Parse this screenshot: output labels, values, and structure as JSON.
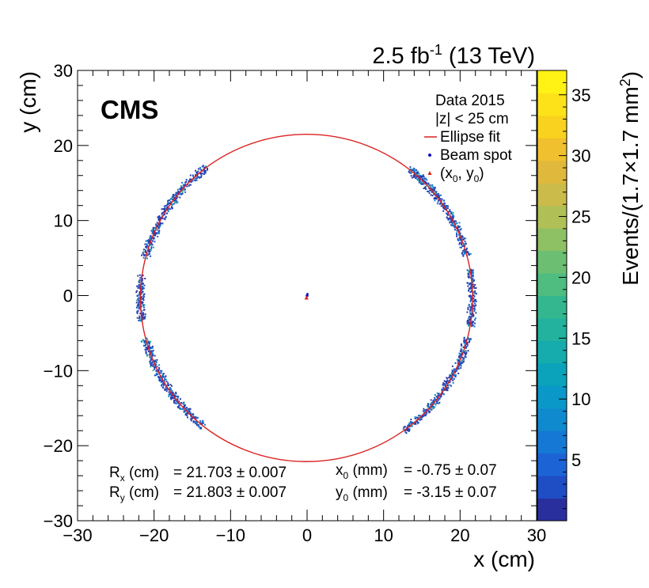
{
  "chart_data": {
    "type": "heatmap",
    "experiment": "CMS",
    "lumi_label": "2.5 fb",
    "lumi_exponent": "-1",
    "energy_label": "(13 TeV)",
    "xlabel": "x (cm)",
    "ylabel": "y (cm)",
    "xlim": [
      -30,
      30
    ],
    "ylim": [
      -30,
      30
    ],
    "xticks": [
      -30,
      -20,
      -10,
      0,
      10,
      20,
      30
    ],
    "yticks": [
      -30,
      -20,
      -10,
      0,
      10,
      20,
      30
    ],
    "xtick_labels": [
      "−30",
      "−20",
      "−10",
      "0",
      "10",
      "20",
      "30"
    ],
    "ytick_labels": [
      "−30",
      "−20",
      "−10",
      "0",
      "10",
      "20",
      "30"
    ],
    "legend": {
      "position": "top-right",
      "header": [
        "Data 2015",
        "|z| < 25 cm"
      ],
      "entries": [
        {
          "label": "Ellipse fit",
          "marker": "line",
          "color": "#dc2020"
        },
        {
          "label": "Beam spot",
          "marker": "dot",
          "color": "#1010c0"
        },
        {
          "label": "(x",
          "sub": "0",
          "label2": ", y",
          "sub2": "0",
          "label3": ")",
          "marker": "triangle",
          "color": "#dc2020"
        }
      ]
    },
    "colorbar": {
      "label_main": "Events/(1.7×1.7 mm",
      "label_sup": "2",
      "label_close": ")",
      "min": 0,
      "max": 37,
      "ticks": [
        5,
        10,
        15,
        20,
        25,
        30,
        35
      ],
      "tick_labels": [
        "5",
        "10",
        "15",
        "20",
        "25",
        "30",
        "35"
      ],
      "colors": [
        "#2a2f9e",
        "#1f4dc4",
        "#1c63d6",
        "#1478d4",
        "#0f8acf",
        "#0a98c8",
        "#0ba3bb",
        "#16abad",
        "#22b29e",
        "#34b78f",
        "#4fbc80",
        "#6cbf72",
        "#8ec064",
        "#b0bf56",
        "#cbbb4a",
        "#e0b83c",
        "#f0c02e",
        "#f9d21f",
        "#fde21a",
        "#fff214"
      ]
    },
    "ellipse_fit": {
      "Rx_cm": 21.703,
      "Rx_err": 0.007,
      "Ry_cm": 21.803,
      "Ry_err": 0.007,
      "x0_mm": -0.75,
      "x0_err": 0.07,
      "y0_mm": -3.15,
      "y0_err": 0.07,
      "color": "#dc2020"
    },
    "beam_spot": {
      "x_cm": 0.0,
      "y_cm": 0.0,
      "color": "#1010c0"
    },
    "ring_arcs_deg": [
      [
        15,
        52
      ],
      [
        127,
        166
      ],
      [
        172,
        188
      ],
      [
        194,
        232
      ],
      [
        306,
        346
      ],
      [
        350,
        360
      ],
      [
        0,
        10
      ]
    ],
    "annotations": {
      "rx_label": "R",
      "rx_sub": "x",
      "rx_unit": " (cm)",
      "rx_value": "=  21.703 ± 0.007",
      "ry_label": "R",
      "ry_sub": "y",
      "ry_unit": " (cm)",
      "ry_value": "=  21.803 ± 0.007",
      "x0_label": "x",
      "x0_sub": "0",
      "x0_unit": " (mm)",
      "x0_value": "=  -0.75 ± 0.07",
      "y0_label": "y",
      "y0_sub": "0",
      "y0_unit": " (mm)",
      "y0_value": "=  -3.15 ± 0.07"
    }
  }
}
